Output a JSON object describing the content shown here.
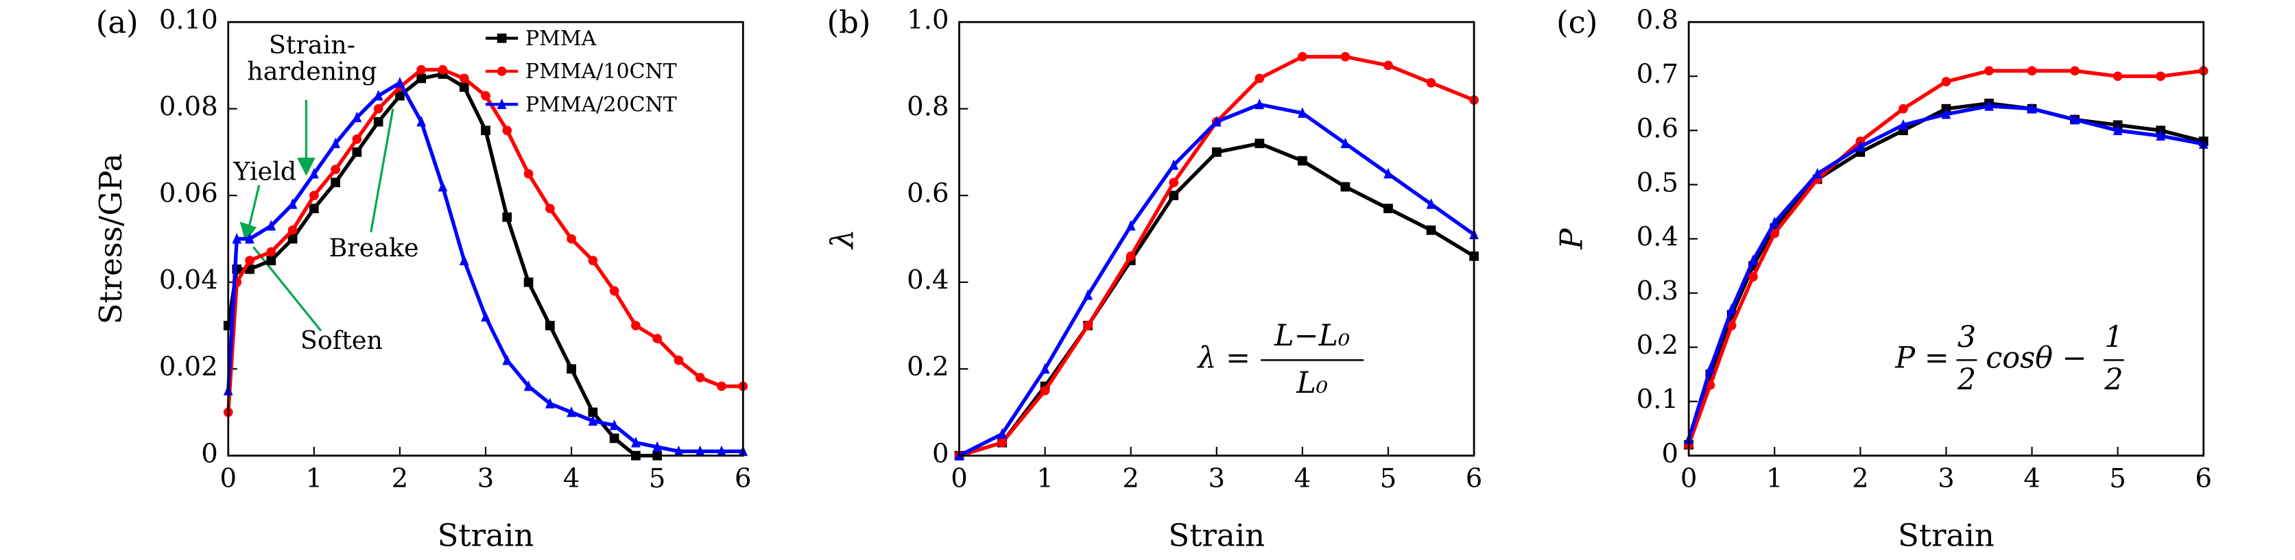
{
  "chart_data": [
    {
      "type": "line",
      "panel": "(a)",
      "ylabel": "Stress/GPa",
      "xlabel": "Strain",
      "x": [
        0,
        0.1,
        0.25,
        0.5,
        0.75,
        1,
        1.25,
        1.5,
        1.75,
        2,
        2.25,
        2.5,
        2.75,
        3,
        3.25,
        3.5,
        3.75,
        4,
        4.25,
        4.5,
        4.75,
        5,
        5.25,
        5.5,
        5.75,
        6
      ],
      "series": [
        {
          "name": "PMMA",
          "color": "#000000",
          "marker": "square",
          "values": [
            0.03,
            0.043,
            0.043,
            0.045,
            0.05,
            0.057,
            0.063,
            0.07,
            0.077,
            0.083,
            0.087,
            0.088,
            0.085,
            0.075,
            0.055,
            0.04,
            0.03,
            0.02,
            0.01,
            0.004,
            0.0,
            0.0,
            null,
            null,
            null,
            null
          ]
        },
        {
          "name": "PMMA/10CNT",
          "color": "#ff0000",
          "marker": "circle",
          "values": [
            0.01,
            0.04,
            0.045,
            0.047,
            0.052,
            0.06,
            0.066,
            0.073,
            0.08,
            0.085,
            0.089,
            0.089,
            0.087,
            0.083,
            0.075,
            0.065,
            0.057,
            0.05,
            0.045,
            0.038,
            0.03,
            0.027,
            0.022,
            0.018,
            0.016,
            0.016
          ]
        },
        {
          "name": "PMMA/20CNT",
          "color": "#0000ff",
          "marker": "triangle",
          "values": [
            0.015,
            0.05,
            0.05,
            0.053,
            0.058,
            0.065,
            0.072,
            0.078,
            0.083,
            0.086,
            0.077,
            0.062,
            0.045,
            0.032,
            0.022,
            0.016,
            0.012,
            0.01,
            0.008,
            0.007,
            0.003,
            0.002,
            0.001,
            0.001,
            0.001,
            0.001
          ]
        }
      ],
      "xlim": [
        0,
        6
      ],
      "xticks": [
        0,
        1,
        2,
        3,
        4,
        5,
        6
      ],
      "ylim": [
        0,
        0.1
      ],
      "yticks": [
        0,
        0.02,
        0.04,
        0.06,
        0.08,
        {
          "value": 0.1,
          "label": "0.10"
        }
      ],
      "legend": "upper right",
      "annotations": [
        "Strain-",
        "hardening",
        "Yield",
        "Breake",
        "Soften"
      ]
    },
    {
      "type": "line",
      "panel": "(b)",
      "ylabel": "λ",
      "xlabel": "Strain",
      "x": [
        0,
        0.5,
        1,
        1.5,
        2,
        2.5,
        3,
        3.5,
        4,
        4.5,
        5,
        5.5,
        6
      ],
      "series": [
        {
          "color": "#000000",
          "marker": "square",
          "values": [
            0,
            0.03,
            0.16,
            0.3,
            0.45,
            0.6,
            0.7,
            0.72,
            0.68,
            0.62,
            0.57,
            0.52,
            0.46
          ]
        },
        {
          "color": "#ff0000",
          "marker": "circle",
          "values": [
            0,
            0.03,
            0.15,
            0.3,
            0.46,
            0.63,
            0.77,
            0.87,
            0.92,
            0.92,
            0.9,
            0.86,
            0.82
          ]
        },
        {
          "color": "#0000ff",
          "marker": "triangle",
          "values": [
            0,
            0.05,
            0.2,
            0.37,
            0.53,
            0.67,
            0.77,
            0.81,
            0.79,
            0.72,
            0.65,
            0.58,
            0.51
          ]
        }
      ],
      "xlim": [
        0,
        6
      ],
      "xticks": [
        0,
        1,
        2,
        3,
        4,
        5,
        6
      ],
      "ylim": [
        0,
        1
      ],
      "yticks": [
        0,
        0.2,
        0.4,
        0.6,
        0.8,
        {
          "value": 1,
          "label": "1.0"
        }
      ],
      "formula": {
        "lhs": "λ =",
        "numerator": "L−L₀",
        "denominator": "L₀"
      }
    },
    {
      "type": "line",
      "panel": "(c)",
      "ylabel": "P",
      "xlabel": "Strain",
      "x": [
        0,
        0.25,
        0.5,
        0.75,
        1,
        1.5,
        2,
        2.5,
        3,
        3.5,
        4,
        4.5,
        5,
        5.5,
        6
      ],
      "series": [
        {
          "color": "#000000",
          "marker": "square",
          "values": [
            0.02,
            0.15,
            0.26,
            0.35,
            0.42,
            0.51,
            0.56,
            0.6,
            0.64,
            0.65,
            0.64,
            0.62,
            0.61,
            0.6,
            0.58
          ]
        },
        {
          "color": "#ff0000",
          "marker": "circle",
          "values": [
            0.02,
            0.13,
            0.24,
            0.33,
            0.41,
            0.51,
            0.58,
            0.64,
            0.69,
            0.71,
            0.71,
            0.71,
            0.7,
            0.7,
            0.71
          ]
        },
        {
          "color": "#0000ff",
          "marker": "triangle",
          "values": [
            0.03,
            0.16,
            0.27,
            0.36,
            0.43,
            0.52,
            0.57,
            0.61,
            0.63,
            0.645,
            0.64,
            0.62,
            0.6,
            0.59,
            0.575
          ]
        }
      ],
      "xlim": [
        0,
        6
      ],
      "xticks": [
        0,
        1,
        2,
        3,
        4,
        5,
        6
      ],
      "ylim": [
        0,
        0.8
      ],
      "yticks": [
        0,
        0.1,
        0.2,
        0.3,
        0.4,
        0.5,
        0.6,
        0.7,
        0.8
      ],
      "formula": {
        "lhs": "P =",
        "num1": "3",
        "den1": "2",
        "mid": "cosθ −",
        "num2": "1",
        "den2": "2"
      }
    }
  ]
}
